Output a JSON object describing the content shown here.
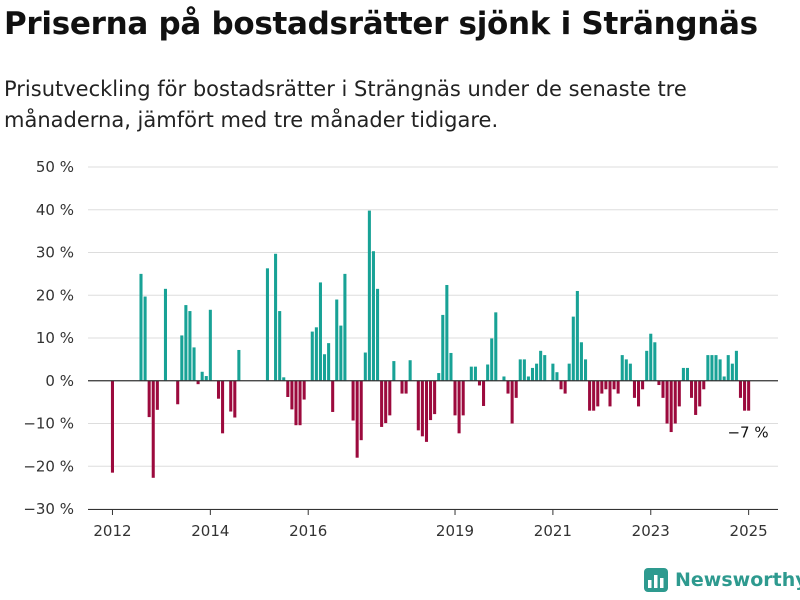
{
  "header": {
    "title": "Priserna på bostadsrätter sjönk i Strängnäs",
    "subtitle": "Prisutveckling för bostadsrätter i Strängnäs under de senaste tre månaderna, jämfört med tre månader tidigare."
  },
  "brand": {
    "name": "Newsworthy",
    "icon": "newsworthy-logo-icon"
  },
  "colors": {
    "positive": "#18a296",
    "negative": "#9c0a3d",
    "grid": "#dddddd",
    "axis": "#333333",
    "tick_text": "#333333"
  },
  "chart_data": {
    "type": "bar",
    "title": "Priserna på bostadsrätter sjönk i Strängnäs",
    "xlabel": "",
    "ylabel": "",
    "ylim": [
      -30,
      50
    ],
    "y_ticks": [
      50,
      40,
      30,
      20,
      10,
      0,
      -10,
      -20,
      -30
    ],
    "y_tick_labels": [
      "50 %",
      "40 %",
      "30 %",
      "20 %",
      "10 %",
      "0 %",
      "−10 %",
      "−20 %",
      "−30 %"
    ],
    "x_ticks": [
      2012,
      2014,
      2016,
      2019,
      2021,
      2023,
      2025
    ],
    "xlim": [
      2011.5,
      2025.6
    ],
    "grid": true,
    "bar_width_years": 0.0625,
    "annotation": {
      "label": "−7 %"
    },
    "x": [
      2012.0,
      2012.583,
      2012.667,
      2012.75,
      2012.833,
      2012.917,
      2013.083,
      2013.333,
      2013.417,
      2013.5,
      2013.583,
      2013.667,
      2013.75,
      2013.833,
      2013.917,
      2014.0,
      2014.167,
      2014.25,
      2014.417,
      2014.5,
      2014.583,
      2015.167,
      2015.333,
      2015.417,
      2015.5,
      2015.583,
      2015.667,
      2015.75,
      2015.833,
      2015.917,
      2016.083,
      2016.167,
      2016.25,
      2016.333,
      2016.417,
      2016.5,
      2016.583,
      2016.667,
      2016.75,
      2016.917,
      2017.0,
      2017.083,
      2017.167,
      2017.25,
      2017.333,
      2017.417,
      2017.5,
      2017.583,
      2017.667,
      2017.75,
      2017.917,
      2018.0,
      2018.083,
      2018.25,
      2018.333,
      2018.417,
      2018.5,
      2018.583,
      2018.667,
      2018.75,
      2018.833,
      2018.917,
      2019.0,
      2019.083,
      2019.167,
      2019.333,
      2019.417,
      2019.5,
      2019.583,
      2019.667,
      2019.75,
      2019.833,
      2020.0,
      2020.083,
      2020.167,
      2020.25,
      2020.333,
      2020.417,
      2020.5,
      2020.583,
      2020.667,
      2020.75,
      2020.833,
      2021.0,
      2021.083,
      2021.167,
      2021.25,
      2021.333,
      2021.417,
      2021.5,
      2021.583,
      2021.667,
      2021.75,
      2021.833,
      2021.917,
      2022.0,
      2022.083,
      2022.167,
      2022.25,
      2022.333,
      2022.417,
      2022.5,
      2022.583,
      2022.667,
      2022.75,
      2022.833,
      2022.917,
      2023.0,
      2023.083,
      2023.167,
      2023.25,
      2023.333,
      2023.417,
      2023.5,
      2023.583,
      2023.667,
      2023.75,
      2023.833,
      2023.917,
      2024.0,
      2024.083,
      2024.167,
      2024.25,
      2024.333,
      2024.417,
      2024.5,
      2024.583,
      2024.667,
      2024.75,
      2024.833,
      2024.917,
      2025.0
    ],
    "values": [
      -21.5,
      25,
      19.7,
      -8.5,
      -22.7,
      -6.8,
      21.5,
      -5.5,
      10.6,
      17.7,
      16.3,
      7.8,
      -0.8,
      2.1,
      1.1,
      16.6,
      -4.2,
      -12.3,
      -7.2,
      -8.6,
      7.2,
      26.3,
      29.7,
      16.3,
      0.8,
      -3.8,
      -6.7,
      -10.4,
      -10.4,
      -4.4,
      11.5,
      12.5,
      23,
      6.2,
      8.8,
      -7.3,
      19,
      12.9,
      25,
      -9.3,
      -18,
      -13.9,
      6.6,
      39.8,
      30.3,
      21.5,
      -10.8,
      -9.9,
      -8.1,
      4.6,
      -3,
      -3,
      4.8,
      -11.6,
      -13,
      -14.3,
      -9.2,
      -7.8,
      1.8,
      15.4,
      22.4,
      6.5,
      -8.1,
      -12.3,
      -8.1,
      3.3,
      3.3,
      -1.1,
      -5.9,
      3.8,
      9.9,
      16,
      1,
      -3,
      -10,
      -4,
      5,
      5,
      1,
      3,
      4,
      7,
      6,
      4,
      2,
      -2,
      -3,
      4,
      15,
      21,
      9,
      5,
      -7,
      -7,
      -6,
      -3,
      -2,
      -6,
      -2,
      -3,
      6,
      5,
      4,
      -4,
      -6,
      -2,
      7,
      11,
      9,
      -1,
      -4,
      -10,
      -12,
      -10,
      -6,
      3,
      3,
      -4,
      -8,
      -6,
      -2,
      6,
      6,
      6,
      5,
      1,
      6,
      4,
      7,
      -4,
      -7,
      -7
    ]
  }
}
